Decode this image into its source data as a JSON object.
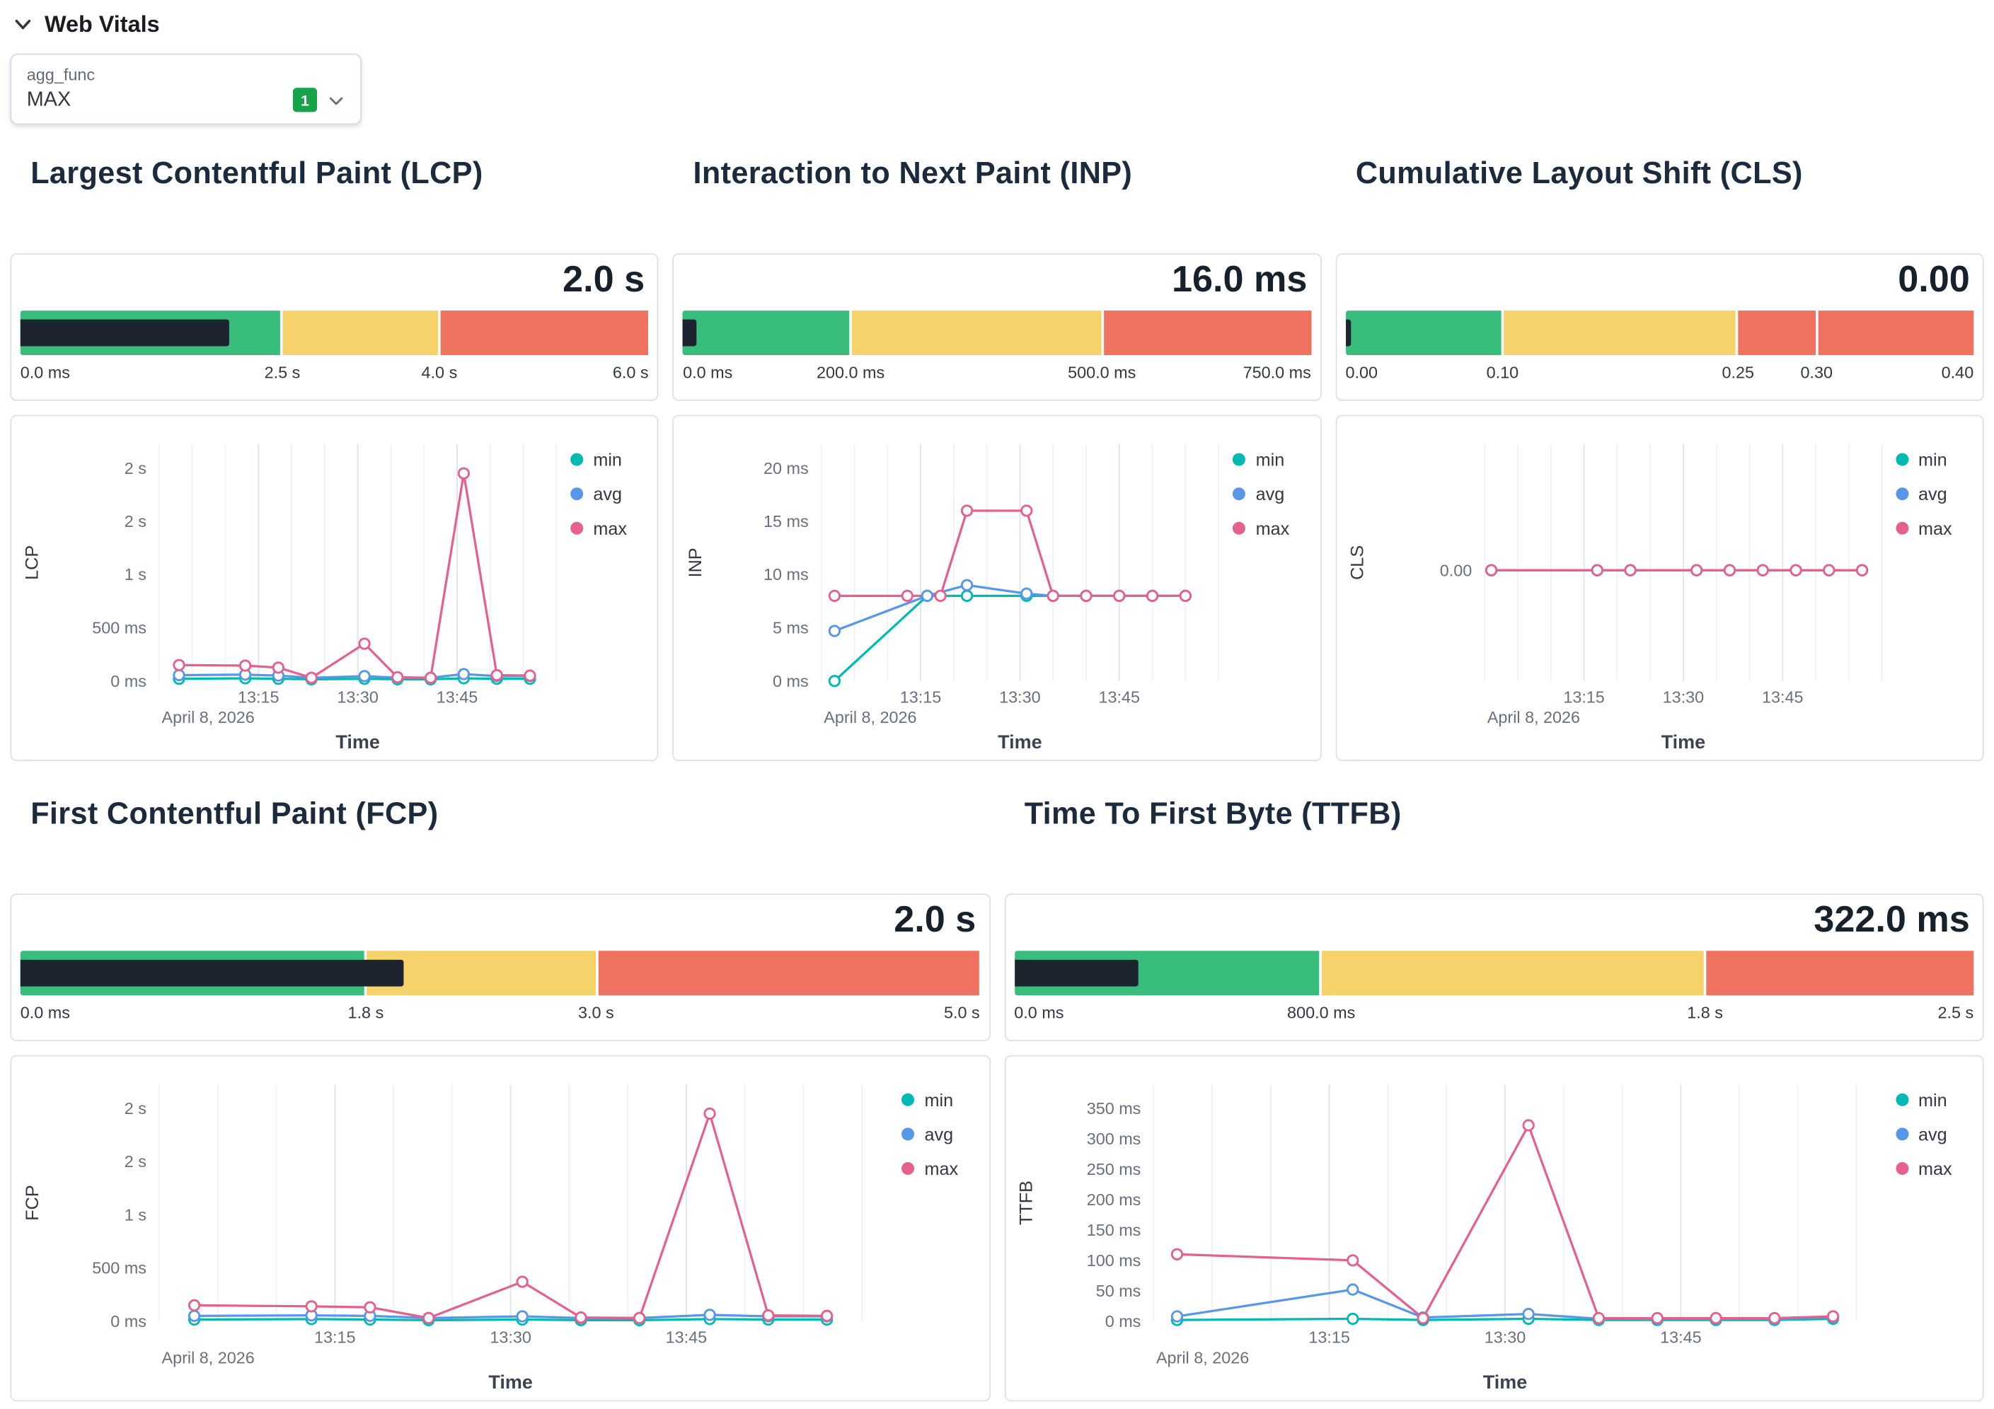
{
  "section": {
    "title": "Web Vitals"
  },
  "agg_control": {
    "label": "agg_func",
    "value": "MAX",
    "badge": "1"
  },
  "colors": {
    "min": "#00b9b1",
    "avg": "#5796e8",
    "max": "#e4618d",
    "green": "#39bd7c",
    "yellow": "#f6d36a",
    "red": "#ef7261"
  },
  "legend_items": [
    {
      "label": "min",
      "color_key": "min"
    },
    {
      "label": "avg",
      "color_key": "avg"
    },
    {
      "label": "max",
      "color_key": "max"
    }
  ],
  "panels": [
    {
      "id": "lcp",
      "title": "Largest Contentful Paint (LCP)",
      "gauge": {
        "value_label": "2.0 s",
        "value_pct": 33.3,
        "segments": [
          {
            "color": "green",
            "width_pct": 41.7
          },
          {
            "color": "yellow",
            "width_pct": 25.0
          },
          {
            "color": "red",
            "width_pct": 33.3
          }
        ],
        "labels": [
          {
            "text": "0.0 ms",
            "pct": 0
          },
          {
            "text": "2.5 s",
            "pct": 41.7
          },
          {
            "text": "4.0 s",
            "pct": 66.7
          },
          {
            "text": "6.0 s",
            "pct": 100
          }
        ]
      },
      "chart": {
        "type": "line",
        "ylabel": "LCP",
        "xlabel": "Time",
        "date_label": "April 8, 2026",
        "xmin": 0,
        "xmax": 60,
        "grid_step": 5,
        "ymin": 0,
        "ymax": 2080,
        "xticks": [
          {
            "v": 15,
            "label": "13:15"
          },
          {
            "v": 30,
            "label": "13:30"
          },
          {
            "v": 45,
            "label": "13:45"
          }
        ],
        "yticks": [
          {
            "v": 2000,
            "label": "2 s"
          },
          {
            "v": 1500,
            "label": "2 s"
          },
          {
            "v": 1000,
            "label": "1 s"
          },
          {
            "v": 500,
            "label": "500 ms"
          },
          {
            "v": 0,
            "label": "0 ms"
          }
        ],
        "series": [
          {
            "name": "min",
            "color_key": "min",
            "x": [
              3,
              13,
              18,
              23,
              31,
              36,
              41,
              46,
              51,
              56
            ],
            "y": [
              20,
              25,
              20,
              15,
              20,
              15,
              15,
              25,
              20,
              20
            ]
          },
          {
            "name": "avg",
            "color_key": "avg",
            "x": [
              3,
              13,
              18,
              23,
              31,
              36,
              41,
              46,
              51,
              56
            ],
            "y": [
              55,
              60,
              50,
              30,
              45,
              30,
              30,
              65,
              45,
              45
            ]
          },
          {
            "name": "max",
            "color_key": "max",
            "x": [
              3,
              13,
              18,
              23,
              31,
              36,
              41,
              46,
              51,
              56
            ],
            "y": [
              150,
              145,
              125,
              30,
              350,
              35,
              30,
              1950,
              55,
              50
            ]
          }
        ]
      }
    },
    {
      "id": "inp",
      "title": "Interaction to Next Paint (INP)",
      "gauge": {
        "value_label": "16.0 ms",
        "value_pct": 2.1,
        "segments": [
          {
            "color": "green",
            "width_pct": 26.7
          },
          {
            "color": "yellow",
            "width_pct": 40.0
          },
          {
            "color": "red",
            "width_pct": 33.3
          }
        ],
        "labels": [
          {
            "text": "0.0 ms",
            "pct": 0
          },
          {
            "text": "200.0 ms",
            "pct": 26.7
          },
          {
            "text": "500.0 ms",
            "pct": 66.7
          },
          {
            "text": "750.0 ms",
            "pct": 100
          }
        ]
      },
      "chart": {
        "type": "line",
        "ylabel": "INP",
        "xlabel": "Time",
        "date_label": "April 8, 2026",
        "xmin": 0,
        "xmax": 60,
        "grid_step": 5,
        "ymin": 0,
        "ymax": 20.8,
        "xticks": [
          {
            "v": 15,
            "label": "13:15"
          },
          {
            "v": 30,
            "label": "13:30"
          },
          {
            "v": 45,
            "label": "13:45"
          }
        ],
        "yticks": [
          {
            "v": 20,
            "label": "20 ms"
          },
          {
            "v": 15,
            "label": "15 ms"
          },
          {
            "v": 10,
            "label": "10 ms"
          },
          {
            "v": 5,
            "label": "5 ms"
          },
          {
            "v": 0,
            "label": "0 ms"
          }
        ],
        "series": [
          {
            "name": "min",
            "color_key": "min",
            "x": [
              2,
              16,
              22,
              31,
              35,
              40,
              45,
              50,
              55
            ],
            "y": [
              0,
              8,
              8,
              8,
              8,
              8,
              8,
              8,
              8
            ]
          },
          {
            "name": "avg",
            "color_key": "avg",
            "x": [
              2,
              16,
              22,
              31,
              35,
              40,
              45,
              50,
              55
            ],
            "y": [
              4.7,
              8,
              9,
              8.2,
              8,
              8,
              8,
              8,
              8
            ]
          },
          {
            "name": "max",
            "color_key": "max",
            "x": [
              2,
              13,
              18,
              22,
              31,
              35,
              40,
              45,
              50,
              55
            ],
            "y": [
              8,
              8,
              8,
              16,
              16,
              8,
              8,
              8,
              8,
              8
            ]
          }
        ]
      }
    },
    {
      "id": "cls",
      "title": "Cumulative Layout Shift (CLS)",
      "gauge": {
        "value_label": "0.00",
        "value_pct": 0,
        "segments": [
          {
            "color": "green",
            "width_pct": 25.0
          },
          {
            "color": "yellow",
            "width_pct": 37.5
          },
          {
            "color": "red",
            "width_pct": 12.5
          },
          {
            "color": "red",
            "width_pct": 25.0
          }
        ],
        "labels": [
          {
            "text": "0.00",
            "pct": 0
          },
          {
            "text": "0.10",
            "pct": 25
          },
          {
            "text": "0.25",
            "pct": 62.5
          },
          {
            "text": "0.30",
            "pct": 75
          },
          {
            "text": "0.40",
            "pct": 100
          }
        ]
      },
      "chart": {
        "type": "line",
        "ylabel": "CLS",
        "xlabel": "Time",
        "date_label": "April 8, 2026",
        "xmin": 0,
        "xmax": 60,
        "grid_step": 5,
        "ymin": -1,
        "ymax": 1,
        "xticks": [
          {
            "v": 15,
            "label": "13:15"
          },
          {
            "v": 30,
            "label": "13:30"
          },
          {
            "v": 45,
            "label": "13:45"
          }
        ],
        "yticks": [
          {
            "v": 0,
            "label": "0.00"
          }
        ],
        "series": [
          {
            "name": "min",
            "color_key": "min",
            "x": [
              1,
              17,
              22,
              32,
              37,
              42,
              47,
              52,
              57
            ],
            "y": [
              0,
              0,
              0,
              0,
              0,
              0,
              0,
              0,
              0
            ]
          },
          {
            "name": "avg",
            "color_key": "avg",
            "x": [
              1,
              17,
              22,
              32,
              37,
              42,
              47,
              52,
              57
            ],
            "y": [
              0,
              0,
              0,
              0,
              0,
              0,
              0,
              0,
              0
            ]
          },
          {
            "name": "max",
            "color_key": "max",
            "x": [
              1,
              17,
              22,
              32,
              37,
              42,
              47,
              52,
              57
            ],
            "y": [
              0,
              0,
              0,
              0,
              0,
              0,
              0,
              0,
              0
            ]
          }
        ]
      }
    },
    {
      "id": "fcp",
      "title": "First Contentful Paint (FCP)",
      "gauge": {
        "value_label": "2.0 s",
        "value_pct": 40.0,
        "segments": [
          {
            "color": "green",
            "width_pct": 36.0
          },
          {
            "color": "yellow",
            "width_pct": 24.0
          },
          {
            "color": "red",
            "width_pct": 40.0
          }
        ],
        "labels": [
          {
            "text": "0.0 ms",
            "pct": 0
          },
          {
            "text": "1.8 s",
            "pct": 36
          },
          {
            "text": "3.0 s",
            "pct": 60
          },
          {
            "text": "5.0 s",
            "pct": 100
          }
        ]
      },
      "chart": {
        "type": "line",
        "ylabel": "FCP",
        "xlabel": "Time",
        "date_label": "April 8, 2026",
        "xmin": 0,
        "xmax": 60,
        "grid_step": 5,
        "ymin": 0,
        "ymax": 2080,
        "xticks": [
          {
            "v": 15,
            "label": "13:15"
          },
          {
            "v": 30,
            "label": "13:30"
          },
          {
            "v": 45,
            "label": "13:45"
          }
        ],
        "yticks": [
          {
            "v": 2000,
            "label": "2 s"
          },
          {
            "v": 1500,
            "label": "2 s"
          },
          {
            "v": 1000,
            "label": "1 s"
          },
          {
            "v": 500,
            "label": "500 ms"
          },
          {
            "v": 0,
            "label": "0 ms"
          }
        ],
        "series": [
          {
            "name": "min",
            "color_key": "min",
            "x": [
              3,
              13,
              18,
              23,
              31,
              36,
              41,
              47,
              52,
              57
            ],
            "y": [
              15,
              20,
              15,
              10,
              15,
              10,
              10,
              20,
              15,
              15
            ]
          },
          {
            "name": "avg",
            "color_key": "avg",
            "x": [
              3,
              13,
              18,
              23,
              31,
              36,
              41,
              47,
              52,
              57
            ],
            "y": [
              50,
              55,
              50,
              30,
              45,
              30,
              30,
              60,
              45,
              45
            ]
          },
          {
            "name": "max",
            "color_key": "max",
            "x": [
              3,
              13,
              18,
              23,
              31,
              36,
              41,
              47,
              52,
              57
            ],
            "y": [
              150,
              140,
              130,
              30,
              370,
              35,
              30,
              1950,
              55,
              50
            ]
          }
        ]
      }
    },
    {
      "id": "ttfb",
      "title": "Time To First Byte (TTFB)",
      "gauge": {
        "value_label": "322.0 ms",
        "value_pct": 12.9,
        "segments": [
          {
            "color": "green",
            "width_pct": 32.0
          },
          {
            "color": "yellow",
            "width_pct": 40.0
          },
          {
            "color": "red",
            "width_pct": 28.0
          }
        ],
        "labels": [
          {
            "text": "0.0 ms",
            "pct": 0
          },
          {
            "text": "800.0 ms",
            "pct": 32
          },
          {
            "text": "1.8 s",
            "pct": 72
          },
          {
            "text": "2.5 s",
            "pct": 100
          }
        ]
      },
      "chart": {
        "type": "line",
        "ylabel": "TTFB",
        "xlabel": "Time",
        "date_label": "April 8, 2026",
        "xmin": 0,
        "xmax": 60,
        "grid_step": 5,
        "ymin": 0,
        "ymax": 364,
        "xticks": [
          {
            "v": 15,
            "label": "13:15"
          },
          {
            "v": 30,
            "label": "13:30"
          },
          {
            "v": 45,
            "label": "13:45"
          }
        ],
        "yticks": [
          {
            "v": 350,
            "label": "350 ms"
          },
          {
            "v": 300,
            "label": "300 ms"
          },
          {
            "v": 250,
            "label": "250 ms"
          },
          {
            "v": 200,
            "label": "200 ms"
          },
          {
            "v": 150,
            "label": "150 ms"
          },
          {
            "v": 100,
            "label": "100 ms"
          },
          {
            "v": 50,
            "label": "50 ms"
          },
          {
            "v": 0,
            "label": "0 ms"
          }
        ],
        "series": [
          {
            "name": "min",
            "color_key": "min",
            "x": [
              2,
              17,
              23,
              32,
              38,
              43,
              48,
              53,
              58
            ],
            "y": [
              2,
              4,
              2,
              4,
              2,
              2,
              2,
              2,
              4
            ]
          },
          {
            "name": "avg",
            "color_key": "avg",
            "x": [
              2,
              17,
              23,
              32,
              38,
              43,
              48,
              53,
              58
            ],
            "y": [
              8,
              52,
              6,
              12,
              4,
              4,
              4,
              4,
              7
            ]
          },
          {
            "name": "max",
            "color_key": "max",
            "x": [
              2,
              17,
              23,
              32,
              38,
              43,
              48,
              53,
              58
            ],
            "y": [
              110,
              100,
              5,
              322,
              5,
              5,
              5,
              5,
              8
            ]
          }
        ]
      }
    }
  ]
}
